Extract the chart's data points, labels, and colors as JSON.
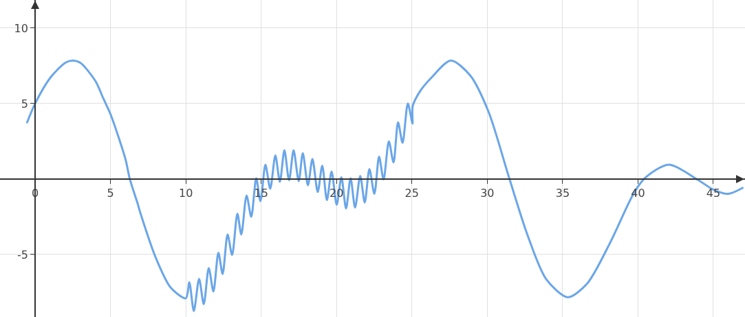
{
  "chart_data": {
    "type": "line",
    "xlim": [
      -2.33,
      47.1
    ],
    "ylim": [
      -9.14,
      11.86
    ],
    "xticks": [
      0,
      5,
      10,
      15,
      20,
      25,
      30,
      35,
      40,
      45
    ],
    "yticks": [
      -5,
      5,
      10
    ],
    "grid": true,
    "marker": "none",
    "line_style": "solid",
    "series": [
      {
        "color": "#6aa6e8",
        "x": [
          -0.55,
          0,
          1,
          2,
          2.47,
          3,
          4,
          4.52,
          5,
          6,
          6.27,
          6.8,
          7,
          8,
          9,
          10,
          10.23,
          10.53,
          10.88,
          11.19,
          11.52,
          11.83,
          12.16,
          12.44,
          12.77,
          13.07,
          13.42,
          13.68,
          14.03,
          14.34,
          14.67,
          14.95,
          15.28,
          15.6,
          15.94,
          16.24,
          16.54,
          16.85,
          17.15,
          17.49,
          17.76,
          18.1,
          18.4,
          18.75,
          19.05,
          19.36,
          19.67,
          20.01,
          20.32,
          20.63,
          20.93,
          21.23,
          21.57,
          21.87,
          22.18,
          22.51,
          22.82,
          23.12,
          23.47,
          23.78,
          24.08,
          24.38,
          24.73,
          25.04,
          25.05,
          25.53,
          26.29,
          27.58,
          28.87,
          30.09,
          31.46,
          32.68,
          33.9,
          35.34,
          36.63,
          38.16,
          39.68,
          40.44,
          42.04,
          43.94,
          45,
          45.99,
          46.99
        ],
        "values": [
          3.7,
          5.0,
          6.7,
          7.7,
          7.85,
          7.7,
          6.5,
          5.35,
          4.3,
          1.3,
          0.05,
          -1.62,
          -2.3,
          -5.2,
          -7.2,
          -7.9,
          -6.85,
          -8.74,
          -6.62,
          -8.29,
          -5.9,
          -7.45,
          -4.88,
          -6.29,
          -3.67,
          -5.03,
          -2.3,
          -3.67,
          -1.09,
          -2.5,
          0.05,
          -1.47,
          0.95,
          -0.64,
          1.56,
          -0.18,
          1.9,
          -0.08,
          1.9,
          -0.14,
          1.71,
          -0.41,
          1.33,
          -0.86,
          0.88,
          -1.39,
          0.5,
          -1.7,
          0.12,
          -1.95,
          0.05,
          -1.89,
          0.2,
          -1.55,
          0.65,
          -0.98,
          1.48,
          -0.03,
          2.5,
          1.1,
          3.76,
          2.4,
          5.01,
          3.68,
          4.82,
          5.8,
          6.71,
          7.85,
          6.86,
          4.44,
          0.05,
          -3.74,
          -6.62,
          -7.83,
          -6.92,
          -4.2,
          -1.01,
          0.05,
          0.95,
          -0.03,
          -0.7,
          -0.98,
          -0.56
        ]
      }
    ]
  }
}
